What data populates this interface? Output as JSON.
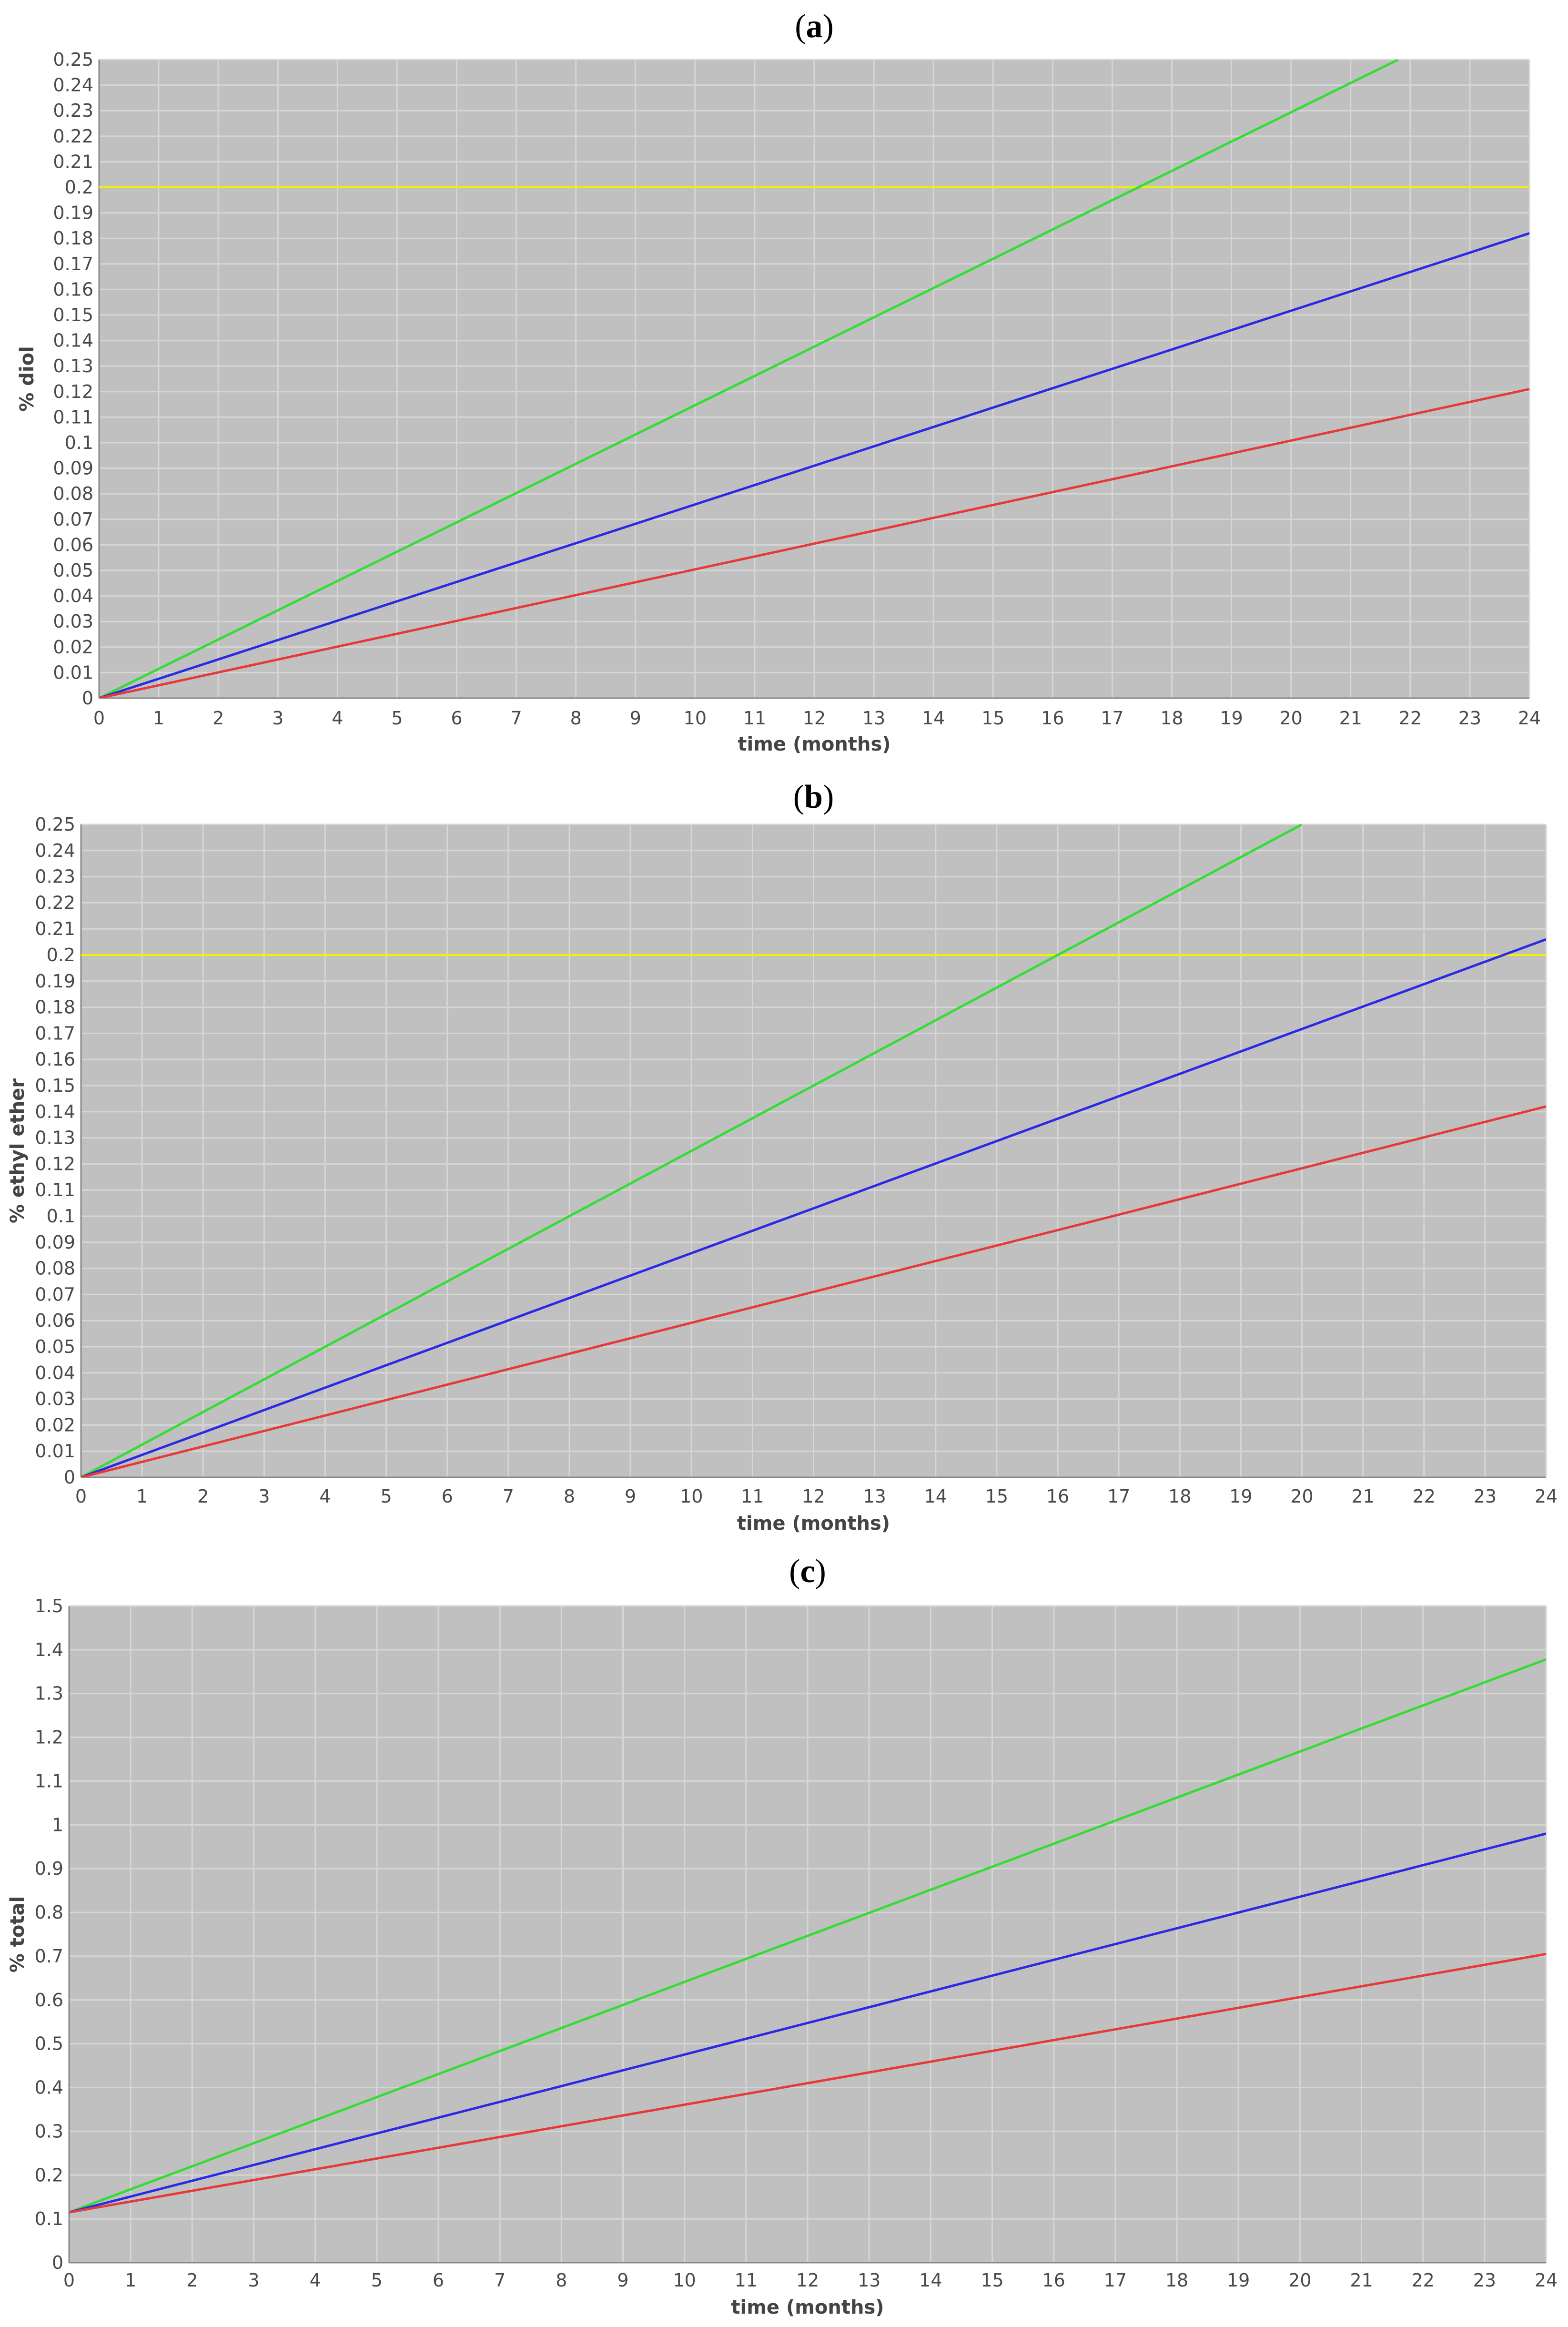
{
  "chart_data": [
    {
      "panel_label": "a",
      "type": "line",
      "xlabel": "time (months)",
      "ylabel": "% diol",
      "xlim": [
        0,
        24
      ],
      "ylim": [
        0,
        0.25
      ],
      "x_ticks": [
        0,
        1,
        2,
        3,
        4,
        5,
        6,
        7,
        8,
        9,
        10,
        11,
        12,
        13,
        14,
        15,
        16,
        17,
        18,
        19,
        20,
        21,
        22,
        23,
        24
      ],
      "y_ticks": [
        "0",
        "0.01",
        "0.02",
        "0.03",
        "0.04",
        "0.05",
        "0.06",
        "0.07",
        "0.08",
        "0.09",
        "0.1",
        "0.11",
        "0.12",
        "0.13",
        "0.14",
        "0.15",
        "0.16",
        "0.17",
        "0.18",
        "0.19",
        "0.2",
        "0.21",
        "0.22",
        "0.23",
        "0.24",
        "0.25"
      ],
      "grid": true,
      "colors": {
        "background": "#c0c0c0",
        "grid": "#d6d6d6",
        "threshold": "#f2f200"
      },
      "threshold": 0.2,
      "series": [
        {
          "color": "#33dd33",
          "x": [
            0,
            21.8
          ],
          "y": [
            0,
            0.25
          ]
        },
        {
          "color": "#2a2ae6",
          "x": [
            0,
            24
          ],
          "y": [
            0,
            0.182
          ]
        },
        {
          "color": "#e63a3a",
          "x": [
            0,
            24
          ],
          "y": [
            0,
            0.121
          ]
        }
      ]
    },
    {
      "panel_label": "b",
      "type": "line",
      "xlabel": "time (months)",
      "ylabel": "% ethyl ether",
      "xlim": [
        0,
        24
      ],
      "ylim": [
        0,
        0.25
      ],
      "x_ticks": [
        0,
        1,
        2,
        3,
        4,
        5,
        6,
        7,
        8,
        9,
        10,
        11,
        12,
        13,
        14,
        15,
        16,
        17,
        18,
        19,
        20,
        21,
        22,
        23,
        24
      ],
      "y_ticks": [
        "0",
        "0.01",
        "0.02",
        "0.03",
        "0.04",
        "0.05",
        "0.06",
        "0.07",
        "0.08",
        "0.09",
        "0.1",
        "0.11",
        "0.12",
        "0.13",
        "0.14",
        "0.15",
        "0.16",
        "0.17",
        "0.18",
        "0.19",
        "0.2",
        "0.21",
        "0.22",
        "0.23",
        "0.24",
        "0.25"
      ],
      "grid": true,
      "colors": {
        "background": "#c0c0c0",
        "grid": "#d6d6d6",
        "threshold": "#f2f200"
      },
      "threshold": 0.2,
      "series": [
        {
          "color": "#33dd33",
          "x": [
            0,
            20
          ],
          "y": [
            0,
            0.25
          ]
        },
        {
          "color": "#2a2ae6",
          "x": [
            0,
            24
          ],
          "y": [
            0,
            0.206
          ]
        },
        {
          "color": "#e63a3a",
          "x": [
            0,
            24
          ],
          "y": [
            0,
            0.142
          ]
        }
      ]
    },
    {
      "panel_label": "c",
      "type": "line",
      "xlabel": "time (months)",
      "ylabel": "% total",
      "xlim": [
        0,
        24
      ],
      "ylim": [
        0,
        1.5
      ],
      "x_ticks": [
        0,
        1,
        2,
        3,
        4,
        5,
        6,
        7,
        8,
        9,
        10,
        11,
        12,
        13,
        14,
        15,
        16,
        17,
        18,
        19,
        20,
        21,
        22,
        23,
        24
      ],
      "y_ticks": [
        "0",
        "0.1",
        "0.2",
        "0.3",
        "0.4",
        "0.5",
        "0.6",
        "0.7",
        "0.8",
        "0.9",
        "1",
        "1.1",
        "1.2",
        "1.3",
        "1.4",
        "1.5"
      ],
      "grid": true,
      "colors": {
        "background": "#c0c0c0",
        "grid": "#d6d6d6"
      },
      "series": [
        {
          "color": "#33dd33",
          "x": [
            0,
            24
          ],
          "y": [
            0.115,
            1.378
          ]
        },
        {
          "color": "#2a2ae6",
          "x": [
            0,
            24
          ],
          "y": [
            0.115,
            0.98
          ]
        },
        {
          "color": "#e63a3a",
          "x": [
            0,
            24
          ],
          "y": [
            0.115,
            0.705
          ]
        }
      ]
    }
  ]
}
